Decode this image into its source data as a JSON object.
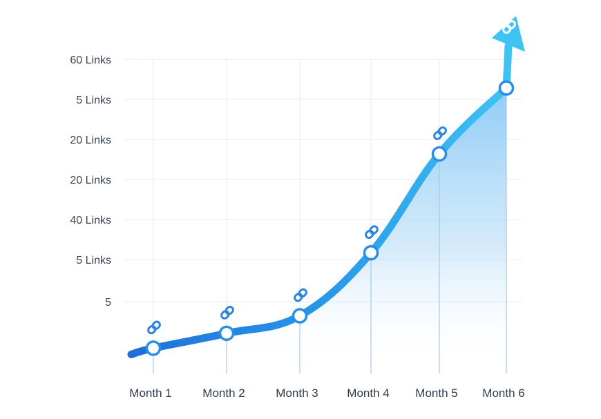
{
  "chart_data": {
    "type": "area",
    "title": "",
    "xlabel": "",
    "ylabel": "",
    "categories": [
      "Month 1",
      "Month 2",
      "Month 3",
      "Month 4",
      "Month 5",
      "Month 6"
    ],
    "y_tick_labels": [
      "60 Links",
      "5 Links",
      "20 Links",
      "20 Links",
      "40 Links",
      "5 Links",
      "5"
    ],
    "series": [
      {
        "values": [
          5.2,
          10.4,
          16.5,
          38.5,
          73,
          96
        ]
      }
    ],
    "ylim": [
      0,
      106
    ],
    "grid": true,
    "legend": "none",
    "marker_icon": "chain-link-icon",
    "end_marker_icon": "arrowhead-icon",
    "colors": {
      "line_start": "#1e6fd9",
      "line_end": "#3ec3f3",
      "fill": "#cfe6fb",
      "grid": "#e6eaf0",
      "icon": "#2a86e0",
      "text": "#2f3b4d"
    }
  }
}
